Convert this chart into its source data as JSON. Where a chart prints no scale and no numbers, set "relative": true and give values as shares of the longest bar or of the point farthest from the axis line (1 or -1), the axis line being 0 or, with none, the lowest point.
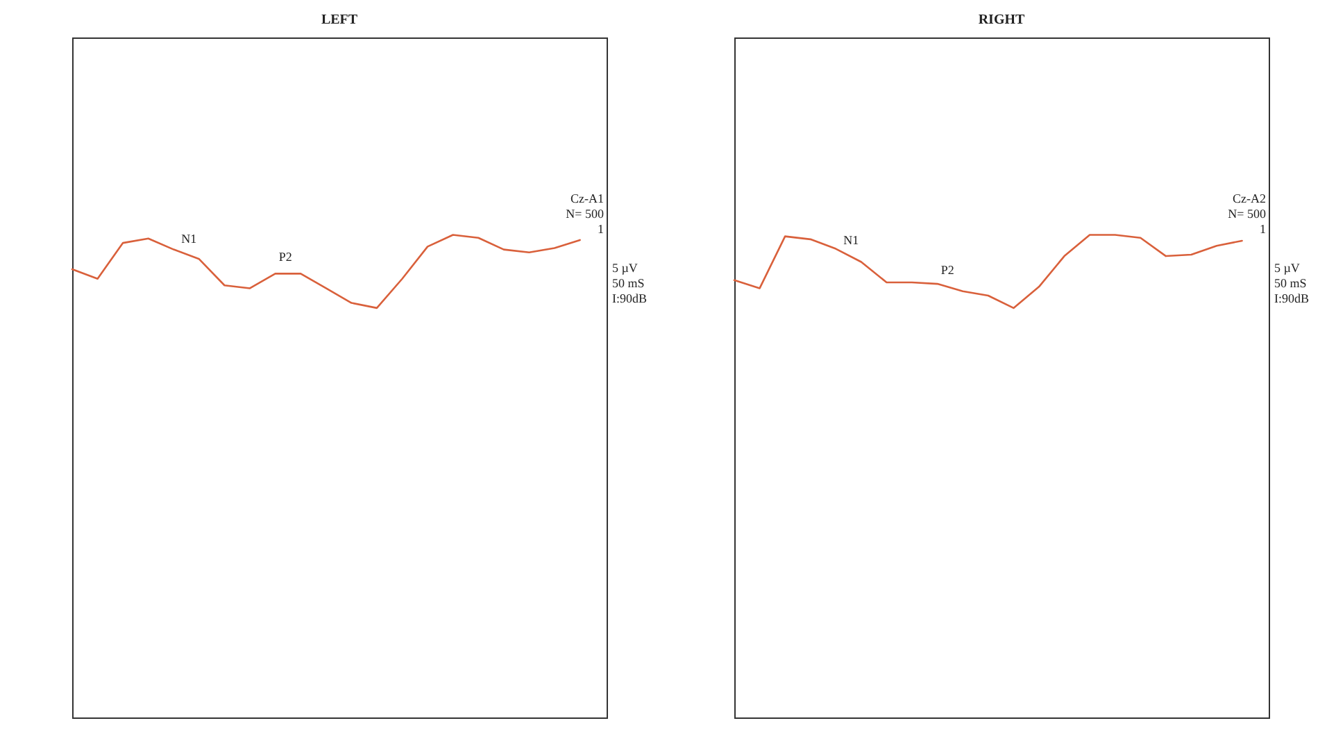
{
  "chart_data": [
    {
      "type": "line",
      "title": "LEFT",
      "relative": true,
      "categories": [
        null,
        null,
        null,
        null,
        null,
        null,
        null,
        null,
        null,
        null,
        null,
        null,
        null,
        null,
        null,
        null,
        null,
        null,
        null,
        null,
        null
      ],
      "series": [
        {
          "color": "#d9603b",
          "values": [
            0.53,
            0.4,
            0.89,
            0.95,
            0.8,
            0.67,
            0.31,
            0.27,
            0.47,
            0.47,
            0.27,
            0.07,
            0,
            0.4,
            0.84,
            1,
            0.96,
            0.8,
            0.76,
            0.82,
            0.93
          ]
        }
      ],
      "annotations": [
        "N1",
        "P2",
        "Cz-A1",
        "N= 500",
        "1",
        "5 µV",
        "50 mS",
        "I:90dB"
      ]
    },
    {
      "type": "line",
      "title": "RIGHT",
      "relative": true,
      "categories": [
        null,
        null,
        null,
        null,
        null,
        null,
        null,
        null,
        null,
        null,
        null,
        null,
        null,
        null,
        null,
        null,
        null,
        null,
        null,
        null,
        null
      ],
      "series": [
        {
          "color": "#d9603b",
          "values": [
            0.38,
            0.27,
            0.98,
            0.94,
            0.81,
            0.63,
            0.35,
            0.35,
            0.33,
            0.23,
            0.17,
            0,
            0.29,
            0.71,
            1,
            1,
            0.96,
            0.71,
            0.73,
            0.85,
            0.92
          ]
        }
      ],
      "annotations": [
        "N1",
        "P2",
        "Cz-A2",
        "N= 500",
        "1",
        "5 µV",
        "50 mS",
        "I:90dB"
      ]
    }
  ]
}
